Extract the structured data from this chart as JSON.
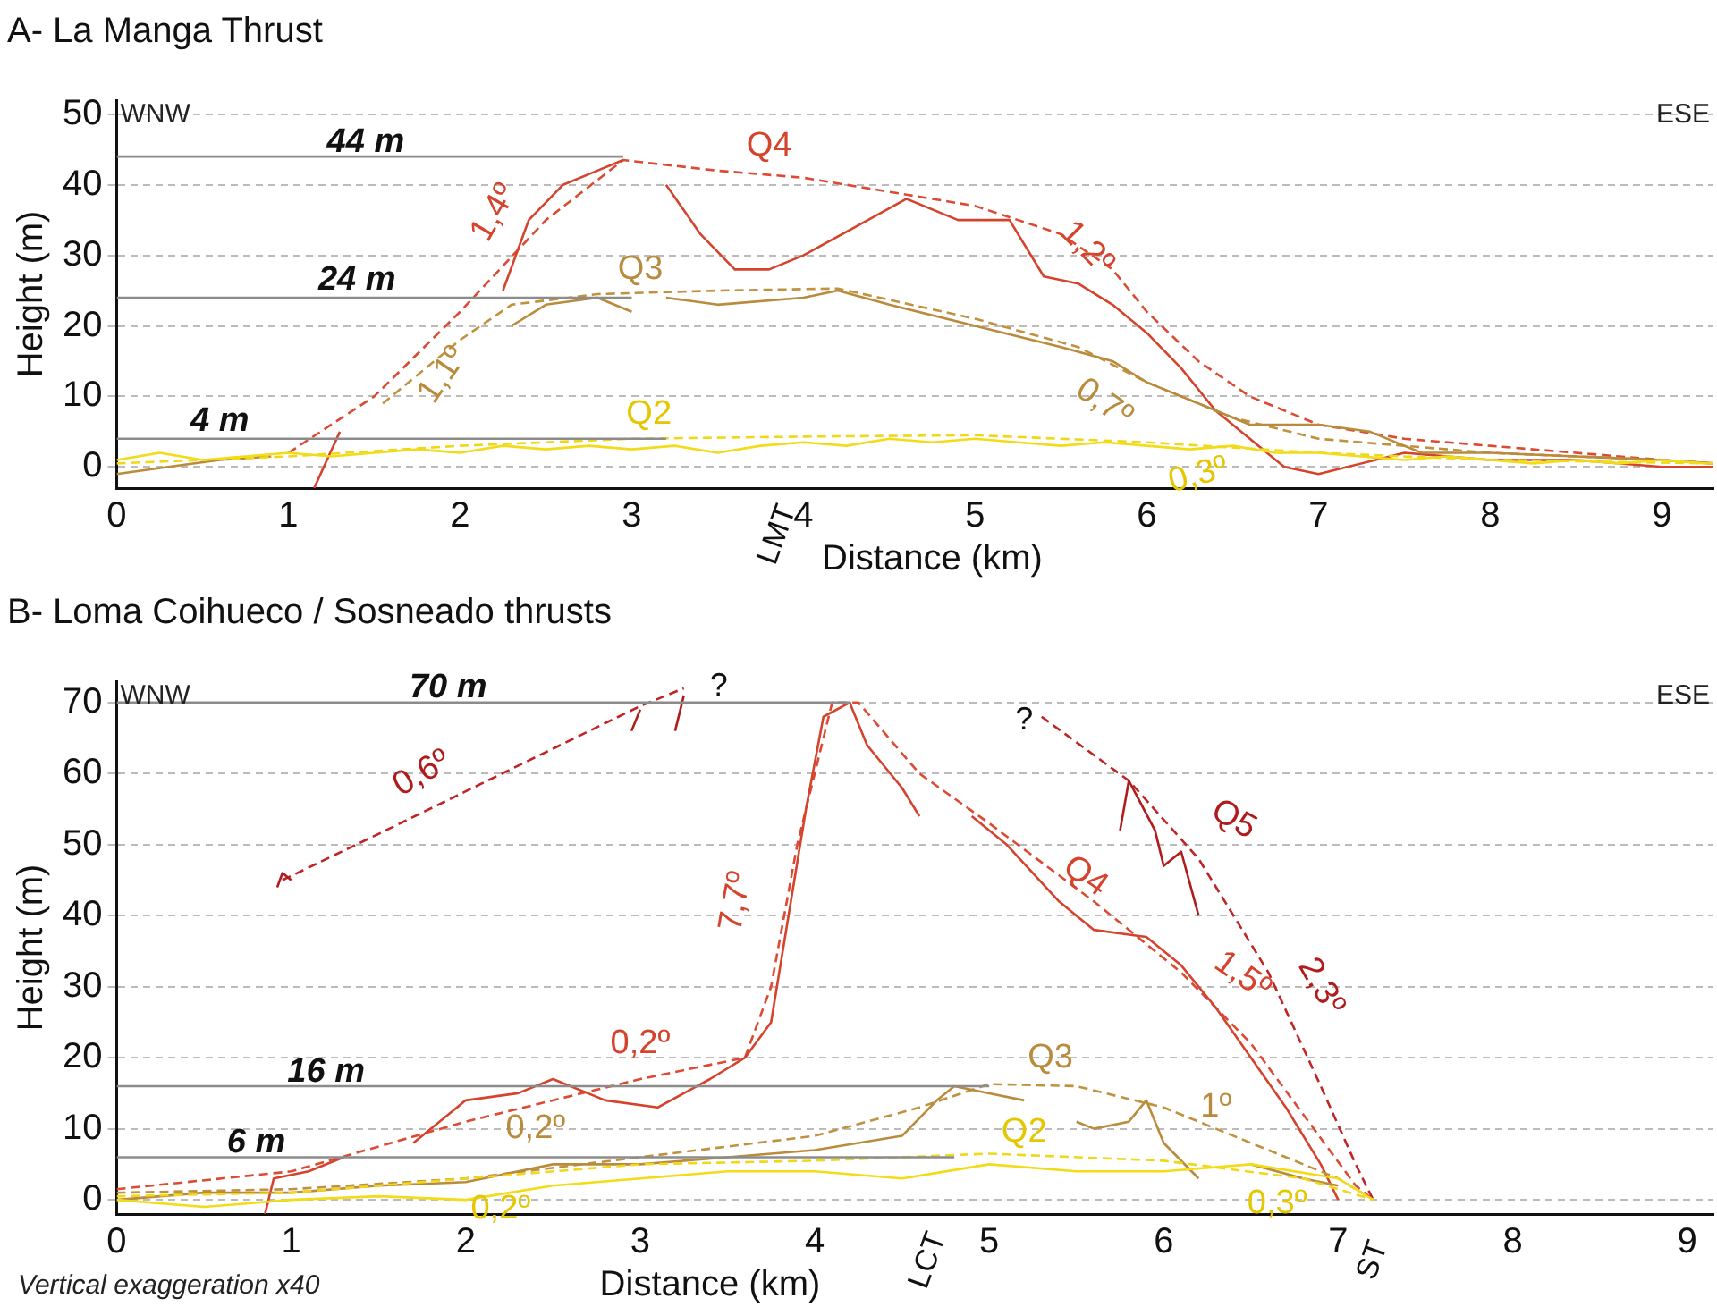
{
  "chart_data": [
    {
      "type": "line",
      "title": "A- La Manga Thrust",
      "xlabel": "Distance (km)",
      "ylabel": "Height (m)",
      "xlim": [
        0,
        9.3
      ],
      "xticks": [
        0,
        1,
        2,
        3,
        4,
        5,
        6,
        7,
        8,
        9
      ],
      "ylim": [
        -3,
        52
      ],
      "yticks": [
        0,
        10,
        20,
        30,
        40,
        50
      ],
      "grid": "y",
      "legend": false,
      "marker": "none",
      "series": [
        {
          "color": "#8c8c8c",
          "x": [
            0,
            2.95
          ],
          "values": [
            44,
            44
          ]
        },
        {
          "color": "#8c8c8c",
          "x": [
            0,
            3.0
          ],
          "values": [
            24,
            24
          ]
        },
        {
          "color": "#8c8c8c",
          "x": [
            0,
            3.2
          ],
          "values": [
            4,
            4
          ]
        },
        {
          "color": "#f2dc1a",
          "x": [
            0,
            0.25,
            0.5,
            0.75,
            1,
            1.25,
            1.5,
            1.75,
            2,
            2.25,
            2.5,
            2.75,
            3,
            3.25,
            3.5,
            3.75,
            4,
            4.25,
            4.5,
            4.75,
            5,
            5.25,
            5.5,
            5.75,
            6,
            6.25,
            6.5,
            6.75,
            7,
            7.25,
            7.5,
            7.75,
            8,
            8.25,
            8.5,
            8.75,
            9,
            9.25
          ],
          "values": [
            1,
            2,
            1,
            1.5,
            2,
            1.5,
            2,
            2.5,
            2,
            3,
            2.5,
            3,
            2.5,
            3,
            2,
            3,
            3.5,
            3,
            4,
            3.5,
            4,
            3.5,
            3,
            3.5,
            3,
            2.5,
            3,
            2,
            2,
            1.5,
            1,
            1.5,
            1,
            0.5,
            1,
            0.5,
            1,
            0.5
          ]
        },
        {
          "color": "#f0d818",
          "line_style": "dashed",
          "x": [
            0,
            1,
            2,
            3,
            4,
            5,
            6,
            7,
            8,
            9.3
          ],
          "values": [
            0.5,
            1.5,
            3,
            4,
            4.3,
            4.5,
            3.5,
            2,
            1,
            0.5
          ]
        },
        {
          "color": "#b98b3c",
          "x": [
            0,
            0.3,
            0.6,
            0.9,
            1.3,
            1.5,
            1.6,
            2.3,
            2.5,
            2.8,
            3.0,
            3.1,
            3.2,
            3.5,
            4.0,
            4.2,
            4.5,
            5.0,
            5.5,
            5.8,
            6.0,
            6.3,
            6.6,
            7.0,
            7.3,
            7.6,
            8,
            8.5,
            9,
            9.3
          ],
          "values": [
            -1,
            0,
            1,
            1.5,
            null,
            null,
            null,
            20,
            23,
            24,
            22,
            null,
            24,
            23,
            24,
            25,
            23,
            20,
            17,
            15,
            12,
            9,
            6,
            6,
            5,
            2,
            2,
            1.5,
            1,
            0.5
          ]
        },
        {
          "color": "#c0913f",
          "line_style": "dashed",
          "x": [
            1.55,
            1.75,
            2.0,
            2.3,
            2.8,
            3.5,
            4.2,
            5,
            5.6,
            6,
            6.5,
            7,
            7.5,
            8,
            9,
            9.3
          ],
          "values": [
            9,
            13,
            18,
            23,
            24.5,
            25,
            25.3,
            21,
            17,
            12,
            7,
            4,
            3,
            2,
            1,
            0.5
          ]
        },
        {
          "color": "#d5432c",
          "x": [
            1.15,
            1.3,
            1.31,
            2.25,
            2.4,
            2.6,
            2.8,
            2.95,
            3.1,
            3.2,
            3.4,
            3.6,
            3.8,
            4.0,
            4.3,
            4.6,
            4.9,
            5.2,
            5.4,
            5.6,
            5.8,
            6.0,
            6.2,
            6.4,
            6.6,
            6.8,
            7.0,
            7.5,
            8,
            8.5,
            9,
            9.3
          ],
          "values": [
            -3,
            5,
            null,
            25,
            35,
            40,
            42,
            43.5,
            null,
            40,
            33,
            28,
            28,
            30,
            34,
            38,
            35,
            35,
            27,
            26,
            23,
            19,
            14,
            8,
            4,
            0,
            -1,
            2,
            1,
            1,
            0,
            0
          ]
        },
        {
          "color": "#dc4a33",
          "line_style": "dashed",
          "x": [
            1.0,
            1.5,
            2,
            2.5,
            2.95,
            3.5,
            4,
            4.5,
            5,
            5.5,
            5.8,
            6.0,
            6.3,
            6.6,
            7,
            7.5,
            8,
            8.5,
            9,
            9.3
          ],
          "values": [
            2,
            10,
            22,
            35,
            43.5,
            42,
            41,
            39,
            37,
            33,
            28,
            22,
            15,
            10,
            6,
            4,
            3,
            2,
            1,
            0.5
          ]
        }
      ],
      "annotations": [
        "WNW",
        "ESE",
        "44 m",
        "24 m",
        "4 m",
        "Q4",
        "Q3",
        "Q2",
        "1,4º",
        "1,2º",
        "1,1º",
        "0,7º",
        "0,3º",
        "LMT"
      ]
    },
    {
      "type": "line",
      "title": "B- Loma Coihueco / Sosneado thrusts",
      "xlabel": "Distance (km)",
      "ylabel": "Height (m)",
      "xlim": [
        0,
        9.15
      ],
      "xticks": [
        0,
        1,
        2,
        3,
        4,
        5,
        6,
        7,
        8,
        9
      ],
      "ylim": [
        -2,
        73
      ],
      "yticks": [
        0,
        10,
        20,
        30,
        40,
        50,
        60,
        70
      ],
      "grid": "y",
      "legend": false,
      "marker": "none",
      "series": [
        {
          "color": "#8c8c8c",
          "x": [
            0,
            4.2
          ],
          "values": [
            70,
            70
          ]
        },
        {
          "color": "#8c8c8c",
          "x": [
            0,
            5.0
          ],
          "values": [
            16,
            16
          ]
        },
        {
          "color": "#8c8c8c",
          "x": [
            0,
            4.8
          ],
          "values": [
            6,
            6
          ]
        },
        {
          "color": "#f2dc1a",
          "x": [
            0,
            0.5,
            1,
            1.5,
            2,
            2.5,
            3,
            3.5,
            4,
            4.5,
            5,
            5.5,
            6,
            6.5,
            7,
            7.2
          ],
          "values": [
            0,
            -1,
            0,
            0.5,
            0,
            2,
            3,
            4,
            4,
            3,
            5,
            4,
            4,
            5,
            3,
            0
          ]
        },
        {
          "color": "#f0d818",
          "line_style": "dashed",
          "x": [
            0,
            1,
            2,
            3,
            4,
            5,
            6,
            6.8,
            7.2
          ],
          "values": [
            0.5,
            1,
            3,
            5,
            5.5,
            6.5,
            5.5,
            3,
            0
          ]
        },
        {
          "color": "#b98b3c",
          "x": [
            0,
            0.5,
            1,
            1.5,
            2,
            2.5,
            3,
            3.5,
            4,
            4.5,
            4.7,
            4.8,
            5,
            5.2,
            5.4,
            5.5,
            5.6,
            5.8,
            5.9,
            6.0,
            6.2,
            6.4,
            6.5,
            6.8,
            7.0
          ],
          "values": [
            0,
            1,
            1,
            2,
            2.5,
            5,
            5,
            6,
            7,
            9,
            14,
            16,
            15,
            14,
            null,
            11,
            10,
            11,
            14,
            8,
            3,
            null,
            5,
            3,
            2
          ]
        },
        {
          "color": "#c0913f",
          "line_style": "dashed",
          "x": [
            0,
            1,
            2,
            3,
            4,
            4.6,
            5,
            5.5,
            6,
            6.5,
            7,
            7.2
          ],
          "values": [
            1,
            1.5,
            3,
            6,
            9,
            13,
            16.3,
            16,
            13,
            8,
            3,
            0
          ]
        },
        {
          "color": "#d5432c",
          "x": [
            0.85,
            0.9,
            1.1,
            1.3,
            1.5,
            1.7,
            2.0,
            2.3,
            2.5,
            2.8,
            3.1,
            3.4,
            3.6,
            3.75,
            3.85,
            3.95,
            4.05,
            4.2,
            4.3,
            4.5,
            4.6,
            4.75,
            4.9,
            5.1,
            5.4,
            5.6,
            5.9,
            6.1,
            6.3,
            6.5,
            6.7,
            6.9,
            7.0
          ],
          "values": [
            -2,
            3,
            4,
            6,
            null,
            8,
            14,
            15,
            17,
            14,
            13,
            17,
            20,
            25,
            40,
            55,
            68,
            70,
            64,
            58,
            54,
            null,
            54,
            50,
            42,
            38,
            37,
            33,
            27,
            20,
            13,
            5,
            0
          ]
        },
        {
          "color": "#dc4a33",
          "line_style": "dashed",
          "x": [
            0,
            1,
            2,
            3,
            3.6,
            3.75,
            3.9,
            4.1,
            4.25,
            4.6,
            5,
            5.6,
            6.1,
            6.5,
            6.8,
            7.1,
            7.2
          ],
          "values": [
            1.5,
            4,
            11,
            17,
            20,
            30,
            50,
            70,
            70,
            60,
            53,
            42,
            32,
            22,
            12,
            2,
            0
          ]
        },
        {
          "color": "#b01c1c",
          "x": [
            0.92,
            0.95,
            1.0,
            1.01,
            2.95,
            3.0,
            3.05,
            3.2,
            3.25
          ],
          "values": [
            44,
            46,
            45,
            null,
            66,
            69,
            null,
            66,
            71
          ]
        },
        {
          "color": "#c02424",
          "line_style": "dashed",
          "x": [
            0.95,
            1.5,
            2,
            2.5,
            3,
            3.25
          ],
          "values": [
            45,
            51.5,
            57.5,
            63.5,
            69.5,
            72
          ]
        },
        {
          "color": "#b01c1c",
          "x": [
            5.75,
            5.8,
            5.95,
            6.0,
            6.1,
            6.2
          ],
          "values": [
            52,
            59,
            52,
            47,
            49,
            40
          ]
        },
        {
          "color": "#c02424",
          "line_style": "dashed",
          "x": [
            5.3,
            5.8,
            6.2,
            6.6,
            6.9,
            7.1,
            7.2
          ],
          "values": [
            68,
            59,
            48,
            32,
            16,
            5,
            0
          ]
        }
      ],
      "annotations": [
        "WNW",
        "ESE",
        "Vertical exaggeration x40",
        "70 m",
        "16 m",
        "6 m",
        "?",
        "?",
        "0,6º",
        "7,7º",
        "Q5",
        "Q4",
        "1,5º",
        "2,3º",
        "0,2º",
        "0,2º",
        "0,2º",
        "Q3",
        "1º",
        "Q2",
        "0,3º",
        "LCT",
        "ST"
      ]
    }
  ]
}
